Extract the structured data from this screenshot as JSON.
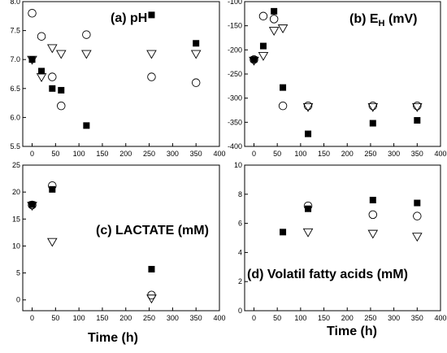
{
  "chart_data": [
    {
      "id": "ph",
      "type": "scatter",
      "title": "(a) pH",
      "xlabel": "",
      "ylabel": "",
      "xlim": [
        -20,
        400
      ],
      "ylim": [
        5.5,
        8.0
      ],
      "xticks": [
        "0",
        "50",
        "100",
        "150",
        "200",
        "250",
        "300",
        "350",
        "400"
      ],
      "yticks": [
        "5.5",
        "6.0",
        "6.5",
        "7.0",
        "7.5",
        "8.0"
      ],
      "series": [
        {
          "marker": "square",
          "x": [
            0,
            20,
            43,
            62,
            116,
            255,
            350
          ],
          "y": [
            7.0,
            6.8,
            6.5,
            6.47,
            5.86,
            7.77,
            7.28
          ]
        },
        {
          "marker": "circle",
          "x": [
            0,
            20,
            43,
            62,
            116,
            255,
            350
          ],
          "y": [
            7.8,
            7.4,
            6.7,
            6.2,
            7.43,
            6.7,
            6.6
          ]
        },
        {
          "marker": "triangle-down",
          "x": [
            0,
            20,
            43,
            62,
            116,
            255,
            350
          ],
          "y": [
            7.0,
            6.7,
            7.2,
            7.1,
            7.1,
            7.1,
            7.1
          ]
        }
      ]
    },
    {
      "id": "eh",
      "type": "scatter",
      "title": "(b) E",
      "title_sub": "H",
      "title_tail": " (mV)",
      "xlabel": "",
      "ylabel": "",
      "xlim": [
        -20,
        400
      ],
      "ylim": [
        -400,
        -100
      ],
      "xticks": [
        "0",
        "50",
        "100",
        "150",
        "200",
        "250",
        "300",
        "350",
        "400"
      ],
      "yticks": [
        "-400",
        "-350",
        "-300",
        "-250",
        "-200",
        "-150",
        "-100"
      ],
      "series": [
        {
          "marker": "square",
          "x": [
            0,
            20,
            43,
            62,
            116,
            255,
            350
          ],
          "y": [
            -220,
            -192,
            -120,
            -278,
            -374,
            -352,
            -346
          ]
        },
        {
          "marker": "circle",
          "x": [
            0,
            20,
            43,
            62,
            116,
            255,
            350
          ],
          "y": [
            -220,
            -130,
            -136,
            -316,
            -316,
            -316,
            -316
          ]
        },
        {
          "marker": "triangle-down",
          "x": [
            0,
            20,
            43,
            62,
            116,
            255,
            350
          ],
          "y": [
            -222,
            -212,
            -160,
            -155,
            -318,
            -318,
            -318
          ]
        }
      ]
    },
    {
      "id": "lactate",
      "type": "scatter",
      "title": "(c) LACTATE (mM)",
      "xlabel": "Time (h)",
      "ylabel": "",
      "xlim": [
        -20,
        400
      ],
      "ylim": [
        -2,
        25
      ],
      "xticks": [
        "0",
        "50",
        "100",
        "150",
        "200",
        "250",
        "300",
        "350",
        "400"
      ],
      "yticks": [
        "0",
        "5",
        "10",
        "15",
        "20",
        "25"
      ],
      "series": [
        {
          "marker": "square",
          "x": [
            0,
            43,
            255
          ],
          "y": [
            17.7,
            20.5,
            5.7
          ]
        },
        {
          "marker": "circle",
          "x": [
            0,
            43,
            255
          ],
          "y": [
            17.6,
            21.2,
            0.9
          ]
        },
        {
          "marker": "triangle-down",
          "x": [
            0,
            43,
            255
          ],
          "y": [
            17.5,
            10.8,
            0.3
          ]
        }
      ]
    },
    {
      "id": "vfa",
      "type": "scatter",
      "title": "(d) Volatil fatty acids (mM)",
      "xlabel": "Time (h)",
      "ylabel": "",
      "xlim": [
        -20,
        400
      ],
      "ylim": [
        0,
        10
      ],
      "xticks": [
        "0",
        "50",
        "100",
        "150",
        "200",
        "250",
        "300",
        "350",
        "400"
      ],
      "yticks": [
        "0",
        "2",
        "4",
        "6",
        "8",
        "10"
      ],
      "series": [
        {
          "marker": "square",
          "x": [
            62,
            116,
            255,
            350
          ],
          "y": [
            5.4,
            7.0,
            7.6,
            7.4
          ]
        },
        {
          "marker": "circle",
          "x": [
            116,
            255,
            350
          ],
          "y": [
            7.2,
            6.6,
            6.5
          ]
        },
        {
          "marker": "triangle-down",
          "x": [
            116,
            255,
            350
          ],
          "y": [
            5.4,
            5.3,
            5.1
          ]
        }
      ]
    }
  ]
}
